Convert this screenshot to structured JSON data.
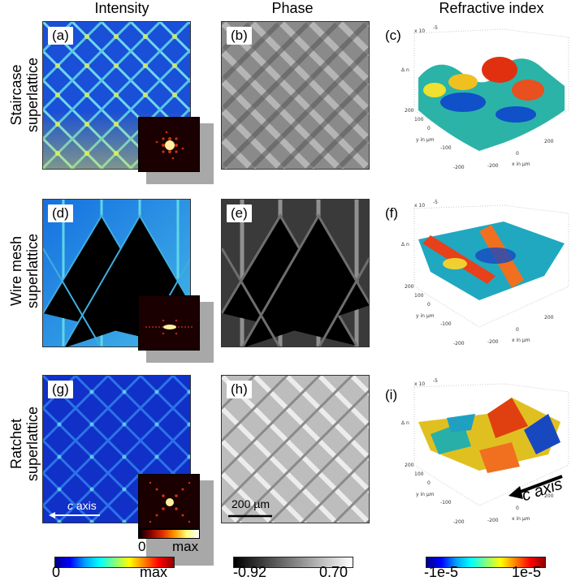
{
  "columns": {
    "intensity": "Intensity",
    "phase": "Phase",
    "refractive": "Refractive index"
  },
  "rows": [
    {
      "line1": "Staircase",
      "line2": "superlattice"
    },
    {
      "line1": "Wire mesh",
      "line2": "superlattice"
    },
    {
      "line1": "Ratchet",
      "line2": "superlattice"
    }
  ],
  "panel_letters": [
    "(a)",
    "(b)",
    "(c)",
    "(d)",
    "(e)",
    "(f)",
    "(g)",
    "(h)",
    "(i)"
  ],
  "annotations": {
    "c_axis_italic": "c",
    "c_axis_word": " axis",
    "c_axis_3d_italic": "c",
    "c_axis_3d_word": " axis",
    "scale_bar": "200 µm",
    "inset_min": "0",
    "inset_max": "max"
  },
  "surface_axes": {
    "z_label": "Δ n",
    "z_multiplier": "x 10",
    "z_exponent": "-5",
    "y_label": "y in µm",
    "x_label": "x in µm",
    "ticks": [
      "-200",
      "-100",
      "0",
      "100",
      "200"
    ]
  },
  "colorbars": {
    "intensity": {
      "min": "0",
      "max": "max"
    },
    "phase": {
      "min": "-0.92",
      "max": "0.70"
    },
    "refractive": {
      "min": "-1e-5",
      "max": "1e-5"
    }
  },
  "colors": {
    "jet_low": "#00008f",
    "jet_mid": "#10b0a0",
    "jet_high": "#8f0000",
    "gray_low": "#000000",
    "gray_high": "#ffffff"
  }
}
